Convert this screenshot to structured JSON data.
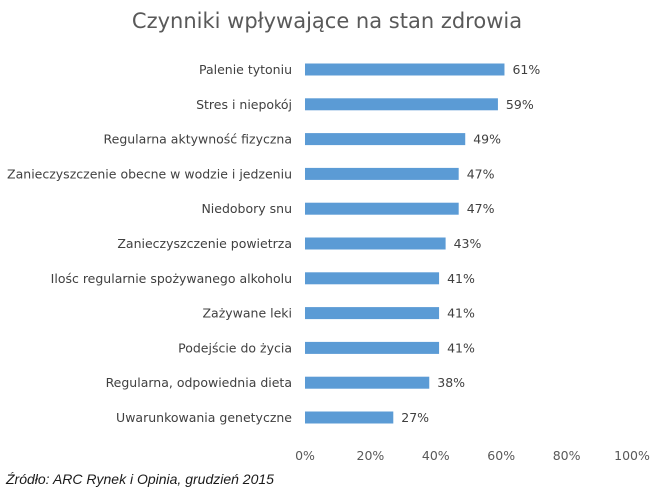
{
  "chart_data": {
    "type": "bar",
    "orientation": "horizontal",
    "title": "Czynniki wpływające na stan zdrowia",
    "categories": [
      "Palenie tytoniu",
      "Stres i niepokój",
      "Regularna aktywność fizyczna",
      "Zanieczyszczenie obecne w wodzie i jedzeniu",
      "Niedobory snu",
      "Zanieczyszczenie powietrza",
      "Ilośc regularnie spożywanego alkoholu",
      "Zażywane leki",
      "Podejście do życia",
      "Regularna, odpowiednia dieta",
      "Uwarunkowania genetyczne"
    ],
    "values": [
      61,
      59,
      49,
      47,
      47,
      43,
      41,
      41,
      41,
      38,
      27
    ],
    "value_labels": [
      "61%",
      "59%",
      "49%",
      "47%",
      "47%",
      "43%",
      "41%",
      "41%",
      "41%",
      "38%",
      "27%"
    ],
    "xlim": [
      0,
      100
    ],
    "x_ticks": [
      "0%",
      "20%",
      "40%",
      "60%",
      "80%",
      "100%"
    ],
    "grid": false,
    "bar_color": "#5b9bd5"
  },
  "source": "Źródło: ARC Rynek i Opinia, grudzień 2015"
}
